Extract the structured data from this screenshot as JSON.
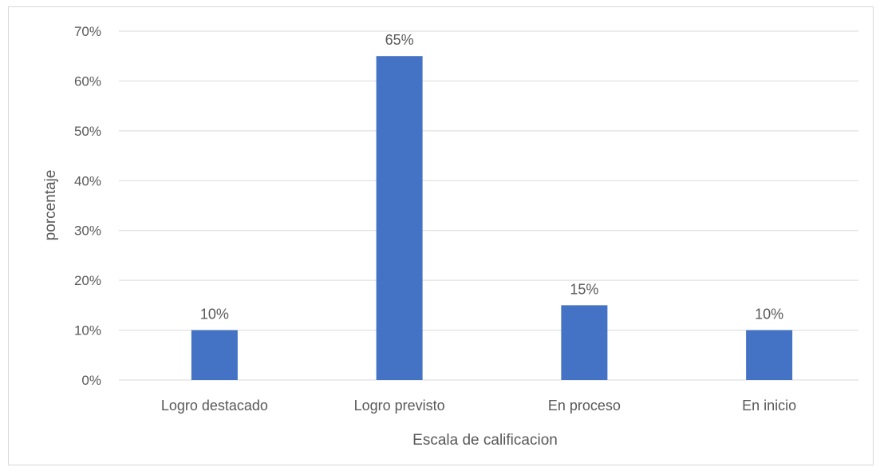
{
  "chart_data": {
    "type": "bar",
    "categories": [
      "Logro destacado",
      "Logro previsto",
      "En proceso",
      "En inicio"
    ],
    "values": [
      10,
      65,
      15,
      10
    ],
    "data_labels": [
      "10%",
      "65%",
      "15%",
      "10%"
    ],
    "xlabel": "Escala de calificacion",
    "ylabel": "porcentaje",
    "ylim": [
      0,
      70
    ],
    "yticks": [
      0,
      10,
      20,
      30,
      40,
      50,
      60,
      70
    ],
    "ytick_labels": [
      "0%",
      "10%",
      "20%",
      "30%",
      "40%",
      "50%",
      "60%",
      "70%"
    ],
    "grid": true,
    "legend": "none",
    "bar_color": "#4472c4",
    "grid_color": "#d9d9d9"
  }
}
